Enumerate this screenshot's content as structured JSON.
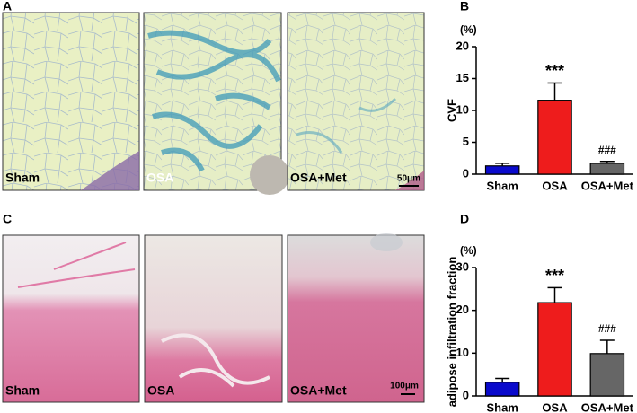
{
  "panel_a": {
    "letter": "A",
    "labels": [
      "Sham",
      "OSA",
      "OSA+Met"
    ],
    "scale_bar": "50μm"
  },
  "panel_c": {
    "letter": "C",
    "labels": [
      "Sham",
      "OSA",
      "OSA+Met"
    ],
    "scale_bar": "100μm"
  },
  "chart_data": [
    {
      "type": "bar",
      "panel": "B",
      "unit": "(%)",
      "y_label": "CVF",
      "categories": [
        "Sham",
        "OSA",
        "OSA+Met"
      ],
      "values": [
        1.3,
        11.6,
        1.7
      ],
      "errors": [
        0.4,
        2.7,
        0.3
      ],
      "colors": [
        "#0a0acc",
        "#ee1c1c",
        "#666666"
      ],
      "significance": [
        null,
        "***",
        "###"
      ],
      "ylim": [
        0,
        20
      ],
      "yticks": [
        0,
        5,
        10,
        15,
        20
      ]
    },
    {
      "type": "bar",
      "panel": "D",
      "unit": "(%)",
      "y_label": "adipose infiltration fraction",
      "categories": [
        "Sham",
        "OSA",
        "OSA+Met"
      ],
      "values": [
        3.2,
        21.8,
        9.9
      ],
      "errors": [
        0.9,
        3.5,
        3.1
      ],
      "colors": [
        "#0a0acc",
        "#ee1c1c",
        "#666666"
      ],
      "significance": [
        null,
        "***",
        "###"
      ],
      "ylim": [
        0,
        30
      ],
      "yticks": [
        0,
        10,
        20,
        30
      ]
    }
  ]
}
